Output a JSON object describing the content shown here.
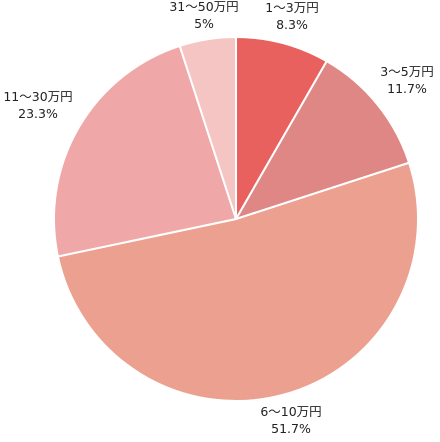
{
  "chart_data": {
    "type": "pie",
    "start_angle_deg": 0,
    "direction": "clockwise",
    "legend": "none",
    "slices": [
      {
        "label": "1～3万円",
        "value": 8.3,
        "value_label": "8.3%",
        "color": "#e8615e"
      },
      {
        "label": "3～5万円",
        "value": 11.7,
        "value_label": "11.7%",
        "color": "#df8785"
      },
      {
        "label": "6～10万円",
        "value": 51.7,
        "value_label": "51.7%",
        "color": "#eca08f"
      },
      {
        "label": "11～30万円",
        "value": 23.3,
        "value_label": "23.3%",
        "color": "#f0a7a7"
      },
      {
        "label": "31～50万円",
        "value": 5,
        "value_label": "5%",
        "color": "#f5c5c4"
      }
    ]
  }
}
